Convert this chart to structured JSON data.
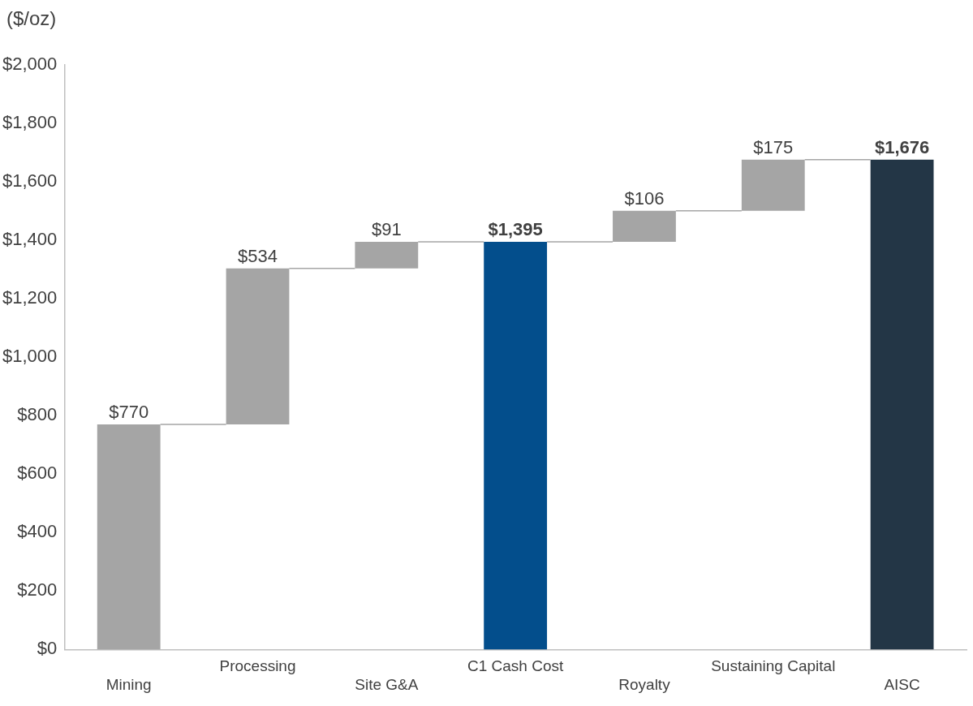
{
  "chart_data": {
    "type": "bar",
    "ylabel": "($/oz)",
    "categories": [
      "Mining",
      "Processing",
      "Site G&A",
      "C1 Cash Cost",
      "Royalty",
      "Sustaining Capital",
      "AISC"
    ],
    "values": [
      770,
      534,
      91,
      1395,
      106,
      175,
      1676
    ],
    "base": [
      0,
      770,
      1304,
      0,
      1395,
      1501,
      0
    ],
    "colors": [
      "#a5a5a5",
      "#a5a5a5",
      "#a5a5a5",
      "#034e8c",
      "#a5a5a5",
      "#a5a5a5",
      "#233646"
    ],
    "value_labels": [
      "$770",
      "$534",
      "$91",
      "$1,395",
      "$106",
      "$175",
      "$1,676"
    ],
    "ylim": [
      0,
      2000
    ],
    "yticks": [
      {
        "value": 0,
        "label": "$0"
      },
      {
        "value": 200,
        "label": "$200"
      },
      {
        "value": 400,
        "label": "$400"
      },
      {
        "value": 600,
        "label": "$600"
      },
      {
        "value": 800,
        "label": "$800"
      },
      {
        "value": 1000,
        "label": "$1,000"
      },
      {
        "value": 1200,
        "label": "$1,200"
      },
      {
        "value": 1400,
        "label": "$1,400"
      },
      {
        "value": 1600,
        "label": "$1,600"
      },
      {
        "value": 1800,
        "label": "$1,800"
      },
      {
        "value": 2000,
        "label": "$2,000"
      }
    ],
    "grid": false,
    "legend": false
  }
}
